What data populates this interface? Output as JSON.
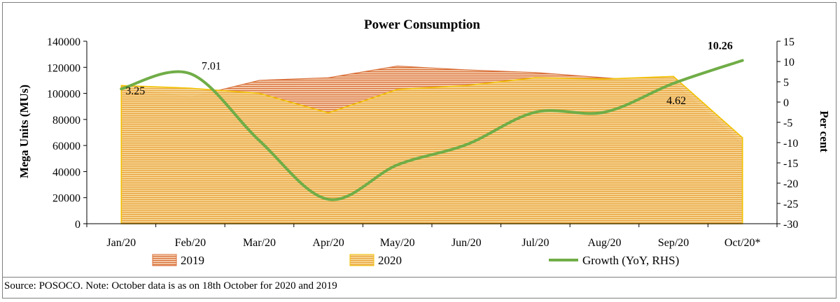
{
  "source_note": "Source: POSOCO. Note: October data is as on 18th October for 2020 and 2019",
  "chart_data": {
    "type": "area",
    "title": "Power Consumption",
    "ylabel": "Mega Units (MUs)",
    "y2label": "Per cent",
    "categories": [
      "Jan/20",
      "Feb/20",
      "Mar/20",
      "Apr/20",
      "May/20",
      "Jun/20",
      "Jul/20",
      "Aug/20",
      "Sep/20",
      "Oct/20*"
    ],
    "ylim": [
      0,
      140000
    ],
    "yticks": [
      0,
      20000,
      40000,
      60000,
      80000,
      100000,
      120000,
      140000
    ],
    "y2lim": [
      -30,
      15
    ],
    "y2ticks": [
      -30,
      -25,
      -20,
      -15,
      -10,
      -5,
      0,
      5,
      10,
      15
    ],
    "series": [
      {
        "name": "2019",
        "kind": "area",
        "axis": "left",
        "color": "#e9a06c",
        "stroke": "#d9703a",
        "values": [
          104000,
          97000,
          110000,
          112000,
          121000,
          118000,
          116000,
          112000,
          108000,
          61000
        ]
      },
      {
        "name": "2020",
        "kind": "area",
        "axis": "left",
        "color": "#f3c162",
        "stroke": "#f2c200",
        "values": [
          106000,
          104000,
          100000,
          85000,
          103000,
          106000,
          112000,
          111000,
          113000,
          66000
        ]
      },
      {
        "name": "Growth (YoY, RHS)",
        "kind": "line",
        "axis": "right",
        "color": "#70ad47",
        "values": [
          3.25,
          7.01,
          -9.5,
          -24.0,
          -15.5,
          -10.5,
          -2.5,
          -2.5,
          4.62,
          10.26
        ]
      }
    ],
    "data_labels": [
      {
        "series": "Growth (YoY, RHS)",
        "index": 0,
        "text": "3.25",
        "bold": false
      },
      {
        "series": "Growth (YoY, RHS)",
        "index": 1,
        "text": "7.01",
        "bold": false
      },
      {
        "series": "Growth (YoY, RHS)",
        "index": 8,
        "text": "4.62",
        "bold": false
      },
      {
        "series": "Growth (YoY, RHS)",
        "index": 9,
        "text": "10.26",
        "bold": true
      }
    ],
    "legend": "bottom",
    "grid": false
  }
}
